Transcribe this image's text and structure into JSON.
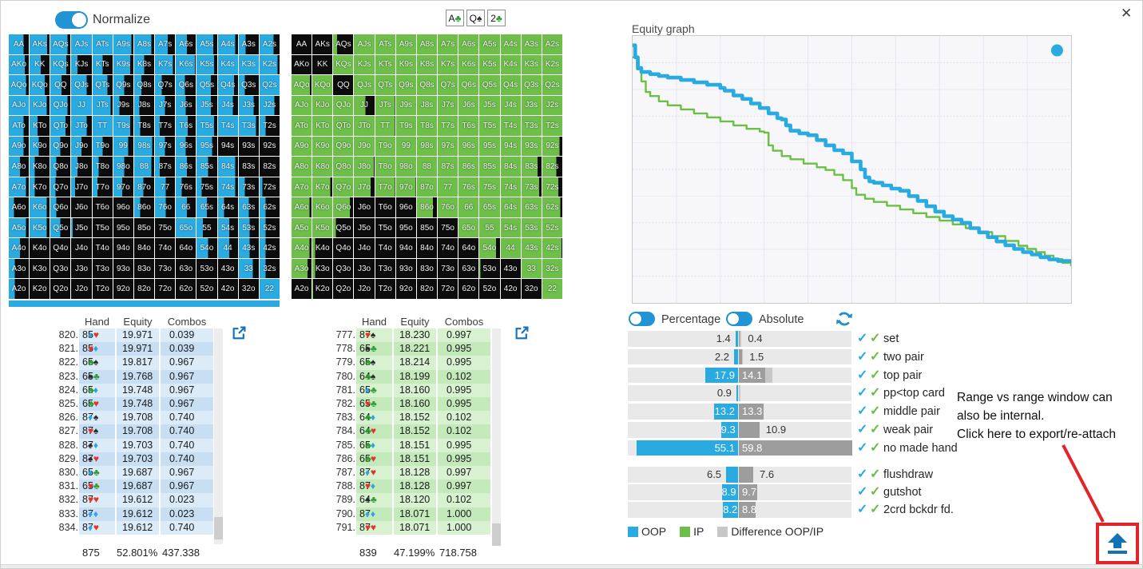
{
  "window": {
    "close": "✕"
  },
  "colors": {
    "oop_blue": "#29abe2",
    "ip_green": "#6dbf4a",
    "cell_black": "#0c0c0c",
    "bar_gray": "#9d9d9d",
    "diff_gray": "#c7c7c7",
    "track_gray": "#e9e9e9",
    "control_blue": "#2094d4",
    "icon_blue": "#1072ba",
    "red": "#e32229",
    "row_blue_light": "#dcebf8",
    "row_blue_dark": "#c7def3",
    "row_green_light": "#d7f1d1",
    "row_green_dark": "#c4eabc"
  },
  "toggles": {
    "normalize": {
      "label": "Normalize",
      "knob": "right"
    },
    "percentage": {
      "label": "Percentage",
      "knob": "left"
    },
    "absolute": {
      "label": "Absolute",
      "knob": "left"
    }
  },
  "board": [
    {
      "rank": "A",
      "suit": "c"
    },
    {
      "rank": "Q",
      "suit": "s"
    },
    {
      "rank": "2",
      "suit": "c"
    }
  ],
  "hand_grid": {
    "labels": [
      [
        "AA",
        "AKs",
        "AQs",
        "AJs",
        "ATs",
        "A9s",
        "A8s",
        "A7s",
        "A6s",
        "A5s",
        "A4s",
        "A3s",
        "A2s"
      ],
      [
        "AKo",
        "KK",
        "KQs",
        "KJs",
        "KTs",
        "K9s",
        "K8s",
        "K7s",
        "K6s",
        "K5s",
        "K4s",
        "K3s",
        "K2s"
      ],
      [
        "AQo",
        "KQo",
        "QQ",
        "QJs",
        "QTs",
        "Q9s",
        "Q8s",
        "Q7s",
        "Q6s",
        "Q5s",
        "Q4s",
        "Q3s",
        "Q2s"
      ],
      [
        "AJo",
        "KJo",
        "QJo",
        "JJ",
        "JTs",
        "J9s",
        "J8s",
        "J7s",
        "J6s",
        "J5s",
        "J4s",
        "J3s",
        "J2s"
      ],
      [
        "ATo",
        "KTo",
        "QTo",
        "JTo",
        "TT",
        "T9s",
        "T8s",
        "T7s",
        "T6s",
        "T5s",
        "T4s",
        "T3s",
        "T2s"
      ],
      [
        "A9o",
        "K9o",
        "Q9o",
        "J9o",
        "T9o",
        "99",
        "98s",
        "97s",
        "96s",
        "95s",
        "94s",
        "93s",
        "92s"
      ],
      [
        "A8o",
        "K8o",
        "Q8o",
        "J8o",
        "T8o",
        "98o",
        "88",
        "87s",
        "86s",
        "85s",
        "84s",
        "83s",
        "82s"
      ],
      [
        "A7o",
        "K7o",
        "Q7o",
        "J7o",
        "T7o",
        "97o",
        "87o",
        "77",
        "76s",
        "75s",
        "74s",
        "73s",
        "72s"
      ],
      [
        "A6o",
        "K6o",
        "Q6o",
        "J6o",
        "T6o",
        "96o",
        "86o",
        "76o",
        "66",
        "65s",
        "64s",
        "63s",
        "62s"
      ],
      [
        "A5o",
        "K5o",
        "Q5o",
        "J5o",
        "T5o",
        "95o",
        "85o",
        "75o",
        "65o",
        "55",
        "54s",
        "53s",
        "52s"
      ],
      [
        "A4o",
        "K4o",
        "Q4o",
        "J4o",
        "T4o",
        "94o",
        "84o",
        "74o",
        "64o",
        "54o",
        "44",
        "43s",
        "42s"
      ],
      [
        "A3o",
        "K3o",
        "Q3o",
        "J3o",
        "T3o",
        "93o",
        "83o",
        "73o",
        "63o",
        "53o",
        "43o",
        "33",
        "32s"
      ],
      [
        "A2o",
        "K2o",
        "Q2o",
        "J2o",
        "T2o",
        "92o",
        "82o",
        "72o",
        "62o",
        "52o",
        "42o",
        "32o",
        "22"
      ]
    ],
    "oop_fills": [
      [
        0.75,
        0.88,
        0.85,
        1,
        1,
        0.9,
        0.85,
        0.65,
        0.55,
        0.8,
        0.85,
        0.35,
        0.7
      ],
      [
        0.8,
        0.55,
        0.8,
        0.3,
        0.5,
        0.85,
        0.5,
        0.9,
        0.95,
        0.85,
        1,
        1,
        0.9
      ],
      [
        0.85,
        0.75,
        0.55,
        0.75,
        0.75,
        0.55,
        0.35,
        0.35,
        0.45,
        0.7,
        0.8,
        0.3,
        1
      ],
      [
        1,
        0.85,
        0.85,
        1,
        0.9,
        0.3,
        0.25,
        0.5,
        0.5,
        0.7,
        0.75,
        0.75,
        0.75
      ],
      [
        0.75,
        0.4,
        0.75,
        0.75,
        1,
        0.85,
        0.3,
        0.25,
        0.6,
        0.85,
        1,
        0.85,
        0.3
      ],
      [
        0.75,
        0.45,
        0.5,
        0.5,
        0.5,
        0.75,
        0.9,
        0.5,
        0.5,
        0.75,
        0,
        0,
        0
      ],
      [
        0.55,
        0.25,
        0.3,
        0.3,
        0.3,
        0.55,
        0.85,
        0.25,
        0.55,
        0.55,
        0.85,
        0,
        0
      ],
      [
        0.85,
        0.25,
        0.25,
        0.2,
        0.25,
        0.45,
        0.45,
        0.55,
        0.3,
        0.25,
        0.85,
        0.3,
        0.15
      ],
      [
        0.25,
        0.85,
        0.3,
        0,
        0,
        0,
        0.3,
        0.55,
        0.55,
        0.5,
        0.3,
        0.5,
        0.3
      ],
      [
        0.85,
        0.85,
        0.5,
        0.08,
        0,
        0,
        0,
        0,
        1,
        0.3,
        0.55,
        0.55,
        0.3
      ],
      [
        0.55,
        0,
        0,
        0,
        0,
        0,
        0,
        0,
        0,
        0.55,
        0.55,
        0.55,
        0.3
      ],
      [
        0.3,
        0,
        0,
        0,
        0,
        0,
        0,
        0,
        0,
        0,
        0,
        0.7,
        0.3
      ],
      [
        0.3,
        0,
        0,
        0,
        0,
        0,
        0,
        0,
        0,
        0,
        0,
        0,
        1
      ]
    ],
    "ip_fills": [
      [
        0,
        0,
        0.2,
        1,
        1,
        1,
        1,
        1,
        1,
        1,
        1,
        1,
        1
      ],
      [
        0,
        0,
        1,
        1,
        1,
        1,
        1,
        1,
        1,
        1,
        1,
        1,
        1
      ],
      [
        0.92,
        1,
        0,
        1,
        1,
        1,
        1,
        1,
        1,
        1,
        1,
        1,
        1
      ],
      [
        1,
        1,
        1,
        0.55,
        0.97,
        1,
        1,
        1,
        1,
        1,
        1,
        1,
        1
      ],
      [
        1,
        1,
        1,
        1,
        0.97,
        1,
        1,
        1,
        1,
        1,
        1,
        1,
        1
      ],
      [
        1,
        1,
        1,
        1,
        1,
        1,
        1,
        1,
        1,
        1,
        1,
        1,
        0.85
      ],
      [
        1,
        1,
        1,
        0.97,
        1,
        1,
        1,
        1,
        1,
        1,
        1,
        0.8,
        0.7
      ],
      [
        1,
        0.9,
        1,
        0.8,
        0.97,
        0.97,
        1,
        1,
        1,
        1,
        1,
        0.88,
        0.8
      ],
      [
        0.9,
        1,
        0.85,
        0,
        0,
        0,
        0.8,
        1,
        1,
        1,
        1,
        1,
        0.9
      ],
      [
        1,
        1,
        0.15,
        0,
        0,
        0,
        0,
        0,
        1,
        1,
        1,
        1,
        1
      ],
      [
        0.9,
        0.15,
        0,
        0,
        0,
        0,
        0,
        0,
        0,
        0.8,
        1,
        1,
        0.95
      ],
      [
        0.8,
        0.15,
        0,
        0,
        0,
        0,
        0,
        0,
        0,
        0.05,
        0,
        1,
        1
      ],
      [
        0,
        0.05,
        0,
        0,
        0,
        0,
        0,
        0,
        0,
        0,
        0,
        0,
        1
      ]
    ]
  },
  "oop_table": {
    "headers": [
      "Hand",
      "Equity",
      "Combos"
    ],
    "rows": [
      [
        "820.",
        "8d5h",
        "19.971",
        "0.039"
      ],
      [
        "821.",
        "8h5d",
        "19.971",
        "0.039"
      ],
      [
        "822.",
        "6c5s",
        "19.817",
        "0.967"
      ],
      [
        "823.",
        "6s5c",
        "19.768",
        "0.967"
      ],
      [
        "824.",
        "6c5d",
        "19.748",
        "0.967"
      ],
      [
        "825.",
        "6c5h",
        "19.748",
        "0.967"
      ],
      [
        "826.",
        "8d7s",
        "19.708",
        "0.740"
      ],
      [
        "827.",
        "8h7s",
        "19.708",
        "0.740"
      ],
      [
        "828.",
        "8s7d",
        "19.703",
        "0.740"
      ],
      [
        "829.",
        "8s7h",
        "19.703",
        "0.740"
      ],
      [
        "830.",
        "6d5c",
        "19.687",
        "0.967"
      ],
      [
        "831.",
        "6h5c",
        "19.687",
        "0.967"
      ],
      [
        "832.",
        "8h7h",
        "19.612",
        "0.023"
      ],
      [
        "833.",
        "8d7d",
        "19.612",
        "0.023"
      ],
      [
        "834.",
        "8d7h",
        "19.612",
        "0.740"
      ]
    ],
    "footer": [
      "875",
      "52.801%",
      "437.338"
    ]
  },
  "ip_table": {
    "headers": [
      "Hand",
      "Equity",
      "Combos"
    ],
    "rows": [
      [
        "777.",
        "8h7s",
        "18.230",
        "0.997"
      ],
      [
        "778.",
        "6s5c",
        "18.221",
        "0.995"
      ],
      [
        "779.",
        "6c5s",
        "18.214",
        "0.995"
      ],
      [
        "780.",
        "6c4s",
        "18.199",
        "0.102"
      ],
      [
        "781.",
        "6d5c",
        "18.160",
        "0.995"
      ],
      [
        "782.",
        "6h5c",
        "18.160",
        "0.995"
      ],
      [
        "783.",
        "6c4d",
        "18.152",
        "0.102"
      ],
      [
        "784.",
        "6c4h",
        "18.152",
        "0.102"
      ],
      [
        "785.",
        "6c5d",
        "18.151",
        "0.995"
      ],
      [
        "786.",
        "6c5h",
        "18.151",
        "0.995"
      ],
      [
        "787.",
        "8d7h",
        "18.128",
        "0.997"
      ],
      [
        "788.",
        "8h7d",
        "18.128",
        "0.997"
      ],
      [
        "789.",
        "6s4c",
        "18.120",
        "0.102"
      ],
      [
        "790.",
        "8d7d",
        "18.071",
        "1.000"
      ],
      [
        "791.",
        "8h7h",
        "18.071",
        "1.000"
      ]
    ],
    "footer": [
      "839",
      "47.199%",
      "718.758"
    ]
  },
  "stats": {
    "scale_max": 60,
    "group1": [
      {
        "label": "set",
        "oop": 1.4,
        "ip": 0.4,
        "oop_in": false,
        "ip_in": false
      },
      {
        "label": "two pair",
        "oop": 2.2,
        "ip": 1.5,
        "oop_in": false,
        "ip_in": false
      },
      {
        "label": "top pair",
        "oop": 17.9,
        "ip": 14.1,
        "oop_in": true,
        "ip_in": true
      },
      {
        "label": "pp<top card",
        "oop": 0.9,
        "ip": null,
        "oop_in": false,
        "ip_in": false
      },
      {
        "label": "middle pair",
        "oop": 13.2,
        "ip": 13.3,
        "oop_in": true,
        "ip_in": true
      },
      {
        "label": "weak pair",
        "oop": 9.3,
        "ip": 10.9,
        "oop_in": true,
        "ip_in": false
      },
      {
        "label": "no made hand",
        "oop": 55.1,
        "ip": 59.8,
        "oop_in": true,
        "ip_in": true
      }
    ],
    "group2": [
      {
        "label": "flushdraw",
        "oop": 6.5,
        "ip": 7.6,
        "oop_in": false,
        "ip_in": false
      },
      {
        "label": "gutshot",
        "oop": 8.9,
        "ip": 9.7,
        "oop_in": true,
        "ip_in": true
      },
      {
        "label": "2crd bckdr fd.",
        "oop": 8.2,
        "ip": 8.8,
        "oop_in": true,
        "ip_in": true
      }
    ]
  },
  "legend": [
    {
      "label": "OOP",
      "color": "#29abe2"
    },
    {
      "label": "IP",
      "color": "#6dbf4a"
    },
    {
      "label": "Difference OOP/IP",
      "color": "#c7c7c7"
    }
  ],
  "annotation": {
    "line1": "Range vs range window can",
    "line2": "also be internal.",
    "line3": "Click here to export/re-attach"
  },
  "chart_data": {
    "type": "line",
    "title": "Equity graph",
    "xlabel": "",
    "ylabel": "",
    "x_range": [
      0,
      100
    ],
    "y_range": [
      0,
      100
    ],
    "grid": true,
    "legend_marker": {
      "color": "#29abe2",
      "x": 96.8,
      "y": 94.6
    },
    "series": [
      {
        "name": "IP",
        "color": "#6cbf45",
        "width": 2.4,
        "points": [
          [
            0,
            92
          ],
          [
            1,
            87.5
          ],
          [
            2,
            83
          ],
          [
            3,
            79
          ],
          [
            4,
            77.5
          ],
          [
            6,
            75.5
          ],
          [
            8,
            74
          ],
          [
            11,
            72.5
          ],
          [
            14,
            71
          ],
          [
            17,
            69.5
          ],
          [
            20,
            68
          ],
          [
            23,
            66.5
          ],
          [
            26,
            65.2
          ],
          [
            29,
            64.2
          ],
          [
            30,
            63.8
          ],
          [
            31,
            59
          ],
          [
            32,
            57
          ],
          [
            34,
            55
          ],
          [
            36,
            53.8
          ],
          [
            39,
            52.2
          ],
          [
            42,
            50.8
          ],
          [
            44,
            49.8
          ],
          [
            46,
            48
          ],
          [
            48,
            46
          ],
          [
            50,
            43
          ],
          [
            51,
            40.5
          ],
          [
            53,
            39
          ],
          [
            55,
            37.8
          ],
          [
            58,
            36.4
          ],
          [
            61,
            35
          ],
          [
            64,
            33.6
          ],
          [
            67,
            32.2
          ],
          [
            70,
            30.8
          ],
          [
            73,
            29.4
          ],
          [
            76,
            28
          ],
          [
            79,
            26.5
          ],
          [
            82,
            25
          ],
          [
            85,
            23.2
          ],
          [
            88,
            21.4
          ],
          [
            90,
            20.2
          ],
          [
            92,
            19
          ],
          [
            94,
            17.7
          ],
          [
            96,
            16.4
          ],
          [
            98,
            15
          ],
          [
            100,
            13.7
          ]
        ]
      },
      {
        "name": "OOP",
        "color": "#29abe2",
        "width": 4.6,
        "points": [
          [
            0,
            96.5
          ],
          [
            0.6,
            92
          ],
          [
            1.2,
            88
          ],
          [
            2,
            86.5
          ],
          [
            4,
            85.7
          ],
          [
            6,
            85
          ],
          [
            8,
            84.4
          ],
          [
            11,
            83.5
          ],
          [
            14,
            82.6
          ],
          [
            17,
            81.7
          ],
          [
            20,
            80.5
          ],
          [
            21,
            79.5
          ],
          [
            23,
            77.7
          ],
          [
            25,
            76.4
          ],
          [
            27,
            74.7
          ],
          [
            29,
            73
          ],
          [
            31,
            71
          ],
          [
            33,
            69.2
          ],
          [
            34,
            68.7
          ],
          [
            35,
            66.5
          ],
          [
            36,
            64.5
          ],
          [
            38,
            63.5
          ],
          [
            40,
            62.8
          ],
          [
            42,
            61
          ],
          [
            44,
            59
          ],
          [
            46,
            57.2
          ],
          [
            48,
            56
          ],
          [
            50,
            53
          ],
          [
            52,
            50
          ],
          [
            53,
            47
          ],
          [
            54,
            45.5
          ],
          [
            55,
            45
          ],
          [
            57,
            44
          ],
          [
            59,
            42.8
          ],
          [
            61,
            42
          ],
          [
            63,
            40
          ],
          [
            65,
            38.2
          ],
          [
            67,
            36.2
          ],
          [
            69,
            34.2
          ],
          [
            71,
            32.5
          ],
          [
            73,
            31.2
          ],
          [
            75,
            30
          ],
          [
            77,
            28
          ],
          [
            79,
            26.4
          ],
          [
            81,
            24.6
          ],
          [
            83,
            23
          ],
          [
            85,
            21.6
          ],
          [
            87,
            20.2
          ],
          [
            89,
            19
          ],
          [
            91,
            18.1
          ],
          [
            93,
            17.1
          ],
          [
            95,
            16.3
          ],
          [
            97,
            15.7
          ],
          [
            100,
            15
          ]
        ]
      }
    ]
  }
}
